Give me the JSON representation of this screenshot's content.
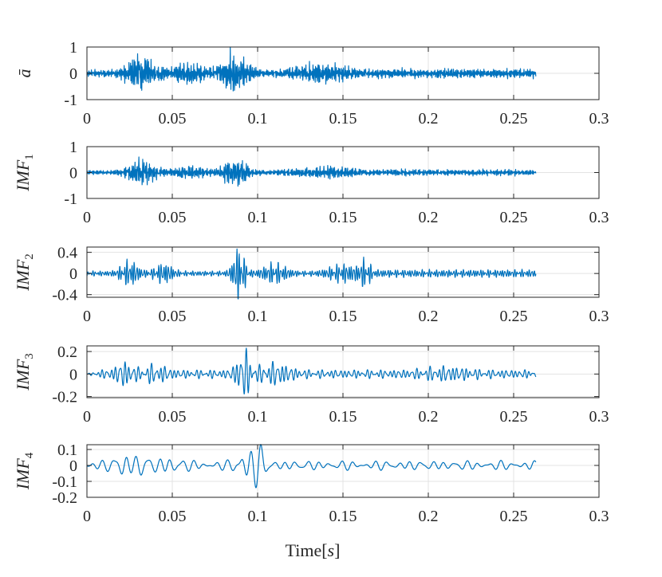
{
  "chart_data": [
    {
      "type": "line",
      "ylabel": "ā",
      "ylabel_base": "ā",
      "ylabel_sub": "",
      "xlim": [
        0,
        0.3
      ],
      "ylim": [
        -1,
        1
      ],
      "xticks": [
        "0",
        "0.05",
        "0.1",
        "0.15",
        "0.2",
        "0.25",
        "0.3"
      ],
      "xtick_values": [
        0,
        0.05,
        0.1,
        0.15,
        0.2,
        0.25,
        0.3
      ],
      "yticks": [
        "-1",
        "0",
        "1"
      ],
      "ytick_values": [
        -1,
        0,
        1
      ],
      "grid": true,
      "series": [
        {
          "color": "#0072bd",
          "x_range": [
            0,
            0.263
          ],
          "peak_abs_amplitude": 1.0
        }
      ]
    },
    {
      "type": "line",
      "ylabel": "IMF1",
      "ylabel_base": "IMF",
      "ylabel_sub": "1",
      "xlim": [
        0,
        0.3
      ],
      "ylim": [
        -1,
        1
      ],
      "xticks": [
        "0",
        "0.05",
        "0.1",
        "0.15",
        "0.2",
        "0.25",
        "0.3"
      ],
      "xtick_values": [
        0,
        0.05,
        0.1,
        0.15,
        0.2,
        0.25,
        0.3
      ],
      "yticks": [
        "-1",
        "0",
        "1"
      ],
      "ytick_values": [
        -1,
        0,
        1
      ],
      "grid": true,
      "series": [
        {
          "color": "#0072bd",
          "x_range": [
            0,
            0.263
          ],
          "peak_abs_amplitude": 0.6
        }
      ]
    },
    {
      "type": "line",
      "ylabel": "IMF2",
      "ylabel_base": "IMF",
      "ylabel_sub": "2",
      "xlim": [
        0,
        0.3
      ],
      "ylim": [
        -0.45,
        0.5
      ],
      "xticks": [
        "0",
        "0.05",
        "0.1",
        "0.15",
        "0.2",
        "0.25",
        "0.3"
      ],
      "xtick_values": [
        0,
        0.05,
        0.1,
        0.15,
        0.2,
        0.25,
        0.3
      ],
      "yticks": [
        "0.4",
        "0",
        "-0.4"
      ],
      "ytick_values": [
        0.4,
        0,
        -0.4
      ],
      "grid": true,
      "series": [
        {
          "color": "#0072bd",
          "x_range": [
            0,
            0.263
          ],
          "peak_abs_amplitude": 0.48
        }
      ]
    },
    {
      "type": "line",
      "ylabel": "IMF3",
      "ylabel_base": "IMF",
      "ylabel_sub": "3",
      "xlim": [
        0,
        0.3
      ],
      "ylim": [
        -0.21,
        0.25
      ],
      "xticks": [
        "0",
        "0.05",
        "0.1",
        "0.15",
        "0.2",
        "0.25",
        "0.3"
      ],
      "xtick_values": [
        0,
        0.05,
        0.1,
        0.15,
        0.2,
        0.25,
        0.3
      ],
      "yticks": [
        "0.2",
        "0",
        "-0.2"
      ],
      "ytick_values": [
        0.2,
        0,
        -0.2
      ],
      "grid": true,
      "series": [
        {
          "color": "#0072bd",
          "x_range": [
            0,
            0.263
          ],
          "peak_abs_amplitude": 0.23
        }
      ]
    },
    {
      "type": "line",
      "ylabel": "IMF4",
      "ylabel_base": "IMF",
      "ylabel_sub": "4",
      "xlim": [
        0,
        0.3
      ],
      "ylim": [
        -0.2,
        0.13
      ],
      "xticks": [
        "0",
        "0.05",
        "0.1",
        "0.15",
        "0.2",
        "0.25",
        "0.3"
      ],
      "xtick_values": [
        0,
        0.05,
        0.1,
        0.15,
        0.2,
        0.25,
        0.3
      ],
      "yticks": [
        "0.1",
        "0",
        "-0.1",
        "-0.2"
      ],
      "ytick_values": [
        0.1,
        0,
        -0.1,
        -0.2
      ],
      "grid": true,
      "series": [
        {
          "color": "#0072bd",
          "x_range": [
            0,
            0.263
          ],
          "peak_abs_amplitude": 0.14
        }
      ]
    }
  ],
  "xlabel_base": "Time",
  "xlabel_unit": "s"
}
